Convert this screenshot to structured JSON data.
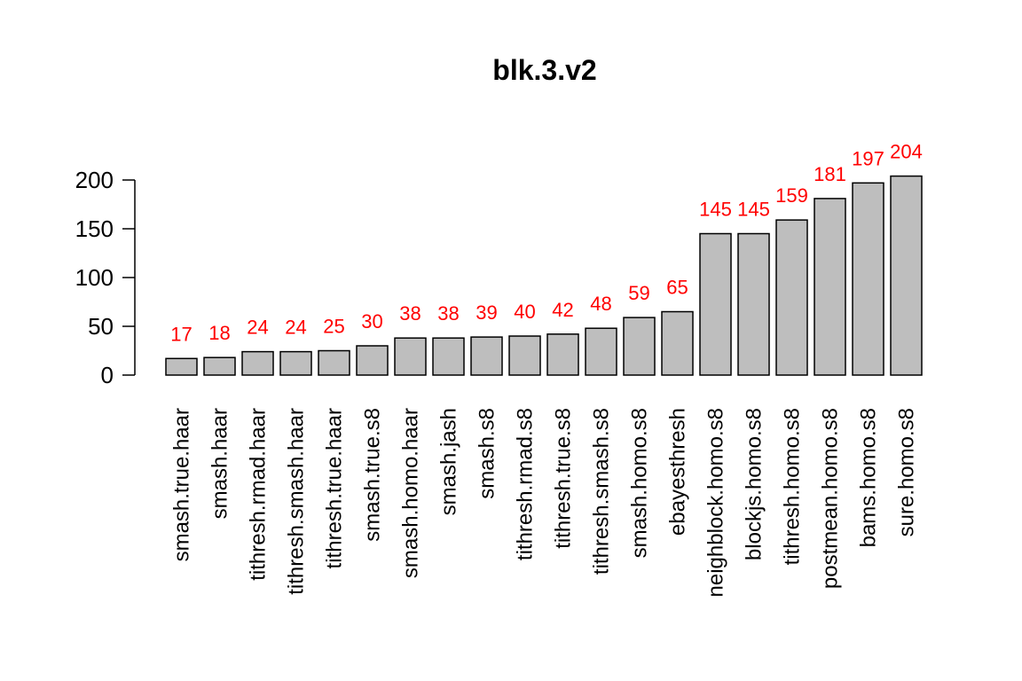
{
  "colors": {
    "bar_fill": "#bebebe",
    "bar_stroke": "#000000",
    "data_label": "#ff0000",
    "axis": "#000000"
  },
  "chart_data": {
    "type": "bar",
    "title": "blk.3.v2",
    "xlabel": "",
    "ylabel": "",
    "ylim": [
      0,
      200
    ],
    "yticks": [
      0,
      50,
      100,
      150,
      200
    ],
    "grid": false,
    "categories": [
      "smash.true.haar",
      "smash.haar",
      "tithresh.rmad.haar",
      "tithresh.smash.haar",
      "tithresh.true.haar",
      "smash.true.s8",
      "smash.homo.haar",
      "smash.jash",
      "smash.s8",
      "tithresh.rmad.s8",
      "tithresh.true.s8",
      "tithresh.smash.s8",
      "smash.homo.s8",
      "ebayesthresh",
      "neighblock.homo.s8",
      "blockjs.homo.s8",
      "tithresh.homo.s8",
      "postmean.homo.s8",
      "bams.homo.s8",
      "sure.homo.s8"
    ],
    "values": [
      17,
      18,
      24,
      24,
      25,
      30,
      38,
      38,
      39,
      40,
      42,
      48,
      59,
      65,
      145,
      145,
      159,
      181,
      197,
      204
    ],
    "data_labels": [
      "17",
      "18",
      "24",
      "24",
      "25",
      "30",
      "38",
      "38",
      "39",
      "40",
      "42",
      "48",
      "59",
      "65",
      "145",
      "145",
      "159",
      "181",
      "197",
      "204"
    ]
  }
}
